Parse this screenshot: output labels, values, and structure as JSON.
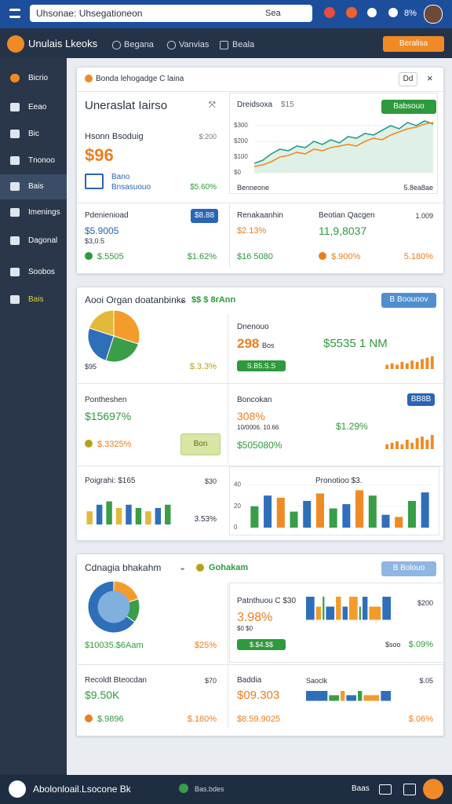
{
  "topbar": {
    "search": "Uhsonae: Uhsegationeon",
    "search_button": "Sea",
    "badge": "8%"
  },
  "navbar": {
    "brand": "Unulais Lkeoks",
    "links": [
      "Begana",
      "Vanvias",
      "Beala"
    ],
    "button": "Beralisa"
  },
  "sidebar": {
    "items": [
      "Bicrio",
      "Eeao",
      "Bic",
      "Tnonoo",
      "Bais",
      "Imenings",
      "Dagonal",
      "Soobos",
      "Bais"
    ]
  },
  "panel1": {
    "header": "Bonda lehogadge C laina",
    "header_button": "Dd",
    "summary": {
      "title": "Uneraslat Iairso",
      "label": "Hsonn Bsoduig",
      "label_value": "$:200",
      "value": "$96",
      "sub_title": "Bano",
      "sub_text": "Bnsasuouo",
      "sub_value": "$5.60%"
    },
    "trend": {
      "title": "Dreidsoxa",
      "title_value": "$15",
      "button": "Babsouo",
      "footer_left": "Benneone",
      "footer_right": "5.8ea8ae",
      "chart": {
        "type": "line",
        "ylim": [
          0,
          350
        ],
        "yticks": [
          {
            "value": 300,
            "label": "$300"
          },
          {
            "value": 200,
            "label": "$200"
          },
          {
            "value": 100,
            "label": "$100"
          },
          {
            "value": 0,
            "label": "$0"
          }
        ],
        "area_color": "#dff1e6",
        "series": [
          {
            "color": "#2a9d8f",
            "values": [
              60,
              80,
              120,
              150,
              140,
              170,
              160,
              200,
              180,
              210,
              190,
              230,
              220,
              250,
              240,
              270,
              300,
              280,
              320,
              300,
              330,
              310
            ]
          },
          {
            "color": "#f08a24",
            "values": [
              40,
              50,
              70,
              100,
              110,
              130,
              120,
              150,
              140,
              160,
              170,
              180,
              170,
              200,
              220,
              210,
              240,
              260,
              280,
              290,
              310,
              320
            ]
          }
        ]
      }
    },
    "stats": [
      {
        "title": "Pdenienioad",
        "badge": "$8.88",
        "value": "$5.9005",
        "sub": "$3,0.5",
        "foot": "$.5505",
        "foot_right": "$1.62%"
      },
      {
        "title": "Renakaanhin",
        "value": "$2.13%",
        "foot": "$16 5080"
      },
      {
        "title": "Beotian Qacgen",
        "title_right": "1.009",
        "value": "11,9,8037",
        "foot": "$.900%",
        "foot_right": "5.180%"
      }
    ]
  },
  "panel2": {
    "header": "Aooi Organ doatanbinks",
    "header_tag": "$$ $ 8rAnn",
    "header_button": "B Boouoov",
    "pie": {
      "chart": {
        "type": "pie",
        "values": [
          30,
          25,
          25,
          20
        ],
        "colors": [
          "#f39c2b",
          "#3a9d48",
          "#2f6fba",
          "#e2b93b"
        ],
        "donut": false
      },
      "label": "$95",
      "value": "$.3.3%"
    },
    "card1": {
      "title": "Dnenouo",
      "value": "298",
      "unit": "Bos",
      "big": "$5535 1 NM",
      "badge": "S.B5.S.S",
      "chart": {
        "type": "bar",
        "ylim": [
          0,
          10
        ],
        "values": [
          3,
          4,
          3,
          5,
          4,
          6,
          5,
          7,
          8,
          9
        ],
        "colors": [
          "#f08a24"
        ]
      }
    },
    "card2": {
      "title": "Pontheshen",
      "value": "$15697%",
      "foot": "$.3325%",
      "button": "Bon"
    },
    "card3": {
      "title": "Boncokan",
      "badge": "BB8B",
      "value": "308%",
      "sub": "10/0006. 10.66",
      "side": "$1.29%",
      "foot": "$505080%",
      "chart": {
        "type": "bar",
        "ylim": [
          0,
          10
        ],
        "values": [
          3,
          4,
          5,
          3,
          6,
          4,
          7,
          8,
          6,
          9
        ],
        "colors": [
          "#f08a24"
        ]
      }
    },
    "card4": {
      "title": "Poigrahi: $165",
      "title_right": "$30",
      "foot": "3.53%",
      "chart": {
        "type": "bar",
        "ylim": [
          0,
          10
        ],
        "values": [
          4,
          6,
          7,
          5,
          6,
          5,
          4,
          5,
          6
        ],
        "colors": [
          "#e2b93b",
          "#2f6fba",
          "#3a9d48"
        ]
      }
    },
    "card5": {
      "title": "Pronotioo $3.",
      "chart": {
        "type": "bar",
        "ylim": [
          0,
          50
        ],
        "yticks": [
          0,
          20,
          40
        ],
        "values": [
          20,
          30,
          28,
          15,
          25,
          32,
          18,
          22,
          35,
          30,
          12,
          10,
          25,
          33
        ],
        "colors": [
          "#3a9d48",
          "#2f6fba",
          "#f08a24"
        ]
      }
    }
  },
  "panel3": {
    "header": "Cdnagia bhakahm",
    "header_tag": "Gohakam",
    "header_button": "B Bolouo",
    "donut": {
      "chart": {
        "type": "pie",
        "values": [
          20,
          15,
          65
        ],
        "colors": [
          "#f39c2b",
          "#3a9d48",
          "#2f6fba"
        ],
        "donut": true
      },
      "label": "$10035.$6Aam",
      "value": "$25%"
    },
    "card1": {
      "title": "Patnthuou C $30",
      "title_right": "$200",
      "value": "3.98%",
      "sub": "$0 $0",
      "badge": "$.$4.$$",
      "foot": "$soo",
      "foot_right": "$.09%",
      "chart": {
        "type": "segments",
        "values": [
          3,
          2,
          1,
          3,
          2,
          2,
          3,
          1,
          2,
          4,
          3
        ],
        "colors": [
          "#2f6fba",
          "#f39c2b",
          "#3a9d48",
          "#2f6fba",
          "#f39c2b"
        ]
      }
    },
    "card2": {
      "title": "Recoldt Bteocdan",
      "title_right": "$70",
      "value": "$9.50K",
      "foot": "$.9896",
      "foot_right": "$.180%"
    },
    "card3": {
      "title": "Baddia",
      "value": "$09.303",
      "foot": "$8.59.9025",
      "side_title": "Saoclk",
      "side_right": "$.05",
      "foot_right": "$.06%",
      "chart": {
        "type": "segments",
        "values": [
          4,
          2,
          1,
          2,
          1,
          3,
          2
        ],
        "colors": [
          "#2f6fba",
          "#3a9d48",
          "#f39c2b"
        ]
      }
    }
  },
  "bottombar": {
    "title": "Abolonloail.Lsocone Bk",
    "center": "Bas.bdes",
    "right": "Baas"
  }
}
